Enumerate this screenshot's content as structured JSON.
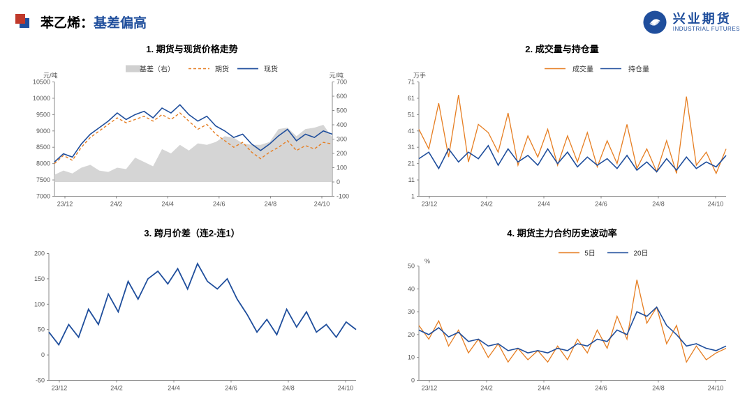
{
  "page": {
    "title_prefix": "苯乙烯：",
    "title_accent": "基差偏高"
  },
  "logo": {
    "cn": "兴业期货",
    "en": "INDUSTRIAL FUTURES",
    "brand_color": "#1f4e9c"
  },
  "colors": {
    "blue": "#1f4e9c",
    "orange": "#e67e22",
    "gray_fill": "#d0d0d0",
    "axis": "#888888",
    "red_decor": "#c0392b"
  },
  "x_categories": [
    "23/12",
    "24/2",
    "24/4",
    "24/6",
    "24/8",
    "24/10"
  ],
  "chart1": {
    "title": "1. 期货与现货价格走势",
    "left_unit": "元/吨",
    "right_unit": "元/吨",
    "left_ylim": [
      7000,
      10500
    ],
    "left_ticks": [
      7000,
      7500,
      8000,
      8500,
      9000,
      9500,
      10000,
      10500
    ],
    "right_ylim": [
      -100,
      700
    ],
    "right_ticks": [
      -100,
      0,
      100,
      200,
      300,
      400,
      500,
      600,
      700
    ],
    "legend": {
      "basis": "基差（右）",
      "futures": "期货",
      "spot": "现货"
    },
    "series_spot": [
      8050,
      8300,
      8200,
      8600,
      8900,
      9100,
      9300,
      9550,
      9350,
      9500,
      9600,
      9400,
      9700,
      9550,
      9800,
      9500,
      9300,
      9450,
      9150,
      9000,
      8800,
      8900,
      8600,
      8400,
      8600,
      8850,
      9050,
      8700,
      8900,
      8800,
      9000,
      8900
    ],
    "series_futures": [
      8000,
      8250,
      8100,
      8500,
      8800,
      9000,
      9200,
      9400,
      9250,
      9350,
      9450,
      9300,
      9500,
      9350,
      9550,
      9300,
      9050,
      9200,
      8900,
      8700,
      8500,
      8650,
      8350,
      8150,
      8350,
      8500,
      8700,
      8400,
      8550,
      8450,
      8650,
      8600
    ],
    "series_basis": [
      50,
      80,
      60,
      100,
      120,
      80,
      70,
      100,
      90,
      170,
      140,
      110,
      230,
      200,
      260,
      220,
      270,
      260,
      280,
      320,
      310,
      270,
      260,
      260,
      280,
      370,
      380,
      320,
      370,
      380,
      400,
      310
    ]
  },
  "chart2": {
    "title": "2. 成交量与持仓量",
    "unit": "万手",
    "ylim": [
      1,
      71
    ],
    "ticks": [
      1,
      11,
      21,
      31,
      41,
      51,
      61,
      71
    ],
    "legend": {
      "vol": "成交量",
      "oi": "持仓量"
    },
    "series_vol": [
      42,
      30,
      58,
      25,
      63,
      22,
      45,
      40,
      28,
      52,
      20,
      38,
      25,
      42,
      20,
      38,
      22,
      40,
      19,
      35,
      21,
      45,
      18,
      30,
      16,
      35,
      15,
      62,
      20,
      28,
      15,
      30
    ],
    "series_oi": [
      24,
      28,
      18,
      30,
      22,
      28,
      24,
      32,
      20,
      30,
      22,
      26,
      20,
      30,
      21,
      28,
      19,
      25,
      20,
      24,
      18,
      26,
      17,
      22,
      16,
      24,
      17,
      25,
      18,
      22,
      19,
      26
    ]
  },
  "chart3": {
    "title": "3. 跨月价差（连2-连1）",
    "ylim": [
      -50,
      200
    ],
    "ticks": [
      -50,
      0,
      50,
      100,
      150,
      200
    ],
    "series": [
      45,
      20,
      60,
      35,
      90,
      60,
      120,
      85,
      145,
      110,
      150,
      165,
      140,
      170,
      130,
      180,
      145,
      130,
      150,
      110,
      80,
      45,
      70,
      40,
      90,
      55,
      85,
      45,
      60,
      35,
      65,
      50
    ]
  },
  "chart4": {
    "title": "4. 期货主力合约历史波动率",
    "unit": "%",
    "ylim": [
      0,
      50
    ],
    "ticks": [
      0,
      10,
      20,
      30,
      40,
      50
    ],
    "legend": {
      "d5": "5日",
      "d20": "20日"
    },
    "series_5d": [
      24,
      18,
      26,
      15,
      22,
      12,
      18,
      10,
      16,
      8,
      14,
      9,
      13,
      8,
      15,
      9,
      18,
      12,
      22,
      14,
      28,
      18,
      44,
      25,
      32,
      16,
      24,
      8,
      15,
      9,
      12,
      14
    ],
    "series_20d": [
      22,
      20,
      23,
      19,
      21,
      17,
      18,
      15,
      16,
      13,
      14,
      12,
      13,
      12,
      14,
      13,
      16,
      15,
      18,
      17,
      22,
      20,
      30,
      28,
      32,
      24,
      20,
      15,
      16,
      14,
      13,
      15
    ]
  }
}
